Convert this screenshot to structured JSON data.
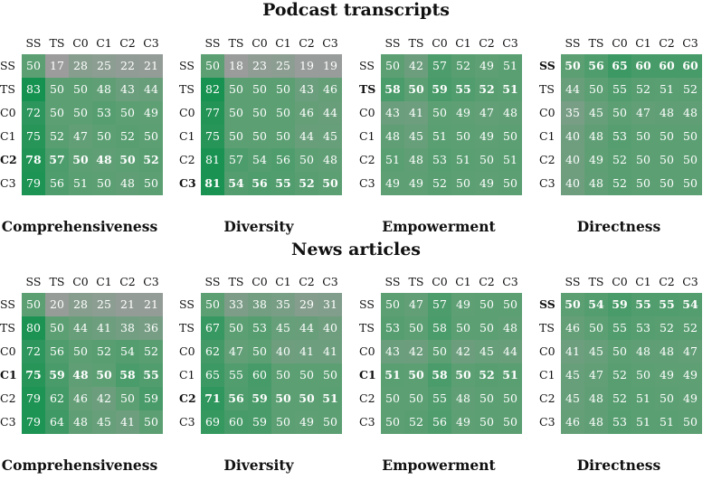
{
  "sections": [
    {
      "title": "Podcast transcripts"
    },
    {
      "title": "News articles"
    }
  ],
  "labels": [
    "SS",
    "TS",
    "C0",
    "C1",
    "C2",
    "C3"
  ],
  "colors": {
    "grey": "#9c9c9c",
    "green_light": "#5c9f73",
    "green_mid": "#4a9c68",
    "green_strong": "#1d9355",
    "text_on_cell": "#ffffff"
  },
  "chart_data": [
    {
      "type": "heatmap",
      "section": "Podcast transcripts",
      "title": "Comprehensiveness",
      "x": [
        "SS",
        "TS",
        "C0",
        "C1",
        "C2",
        "C3"
      ],
      "y": [
        "SS",
        "TS",
        "C0",
        "C1",
        "C2",
        "C3"
      ],
      "bold_row": "C2",
      "values": [
        [
          50,
          17,
          28,
          25,
          22,
          21
        ],
        [
          83,
          50,
          50,
          48,
          43,
          44
        ],
        [
          72,
          50,
          50,
          53,
          50,
          49
        ],
        [
          75,
          52,
          47,
          50,
          52,
          50
        ],
        [
          78,
          57,
          50,
          48,
          50,
          52
        ],
        [
          79,
          56,
          51,
          50,
          48,
          50
        ]
      ]
    },
    {
      "type": "heatmap",
      "section": "Podcast transcripts",
      "title": "Diversity",
      "x": [
        "SS",
        "TS",
        "C0",
        "C1",
        "C2",
        "C3"
      ],
      "y": [
        "SS",
        "TS",
        "C0",
        "C1",
        "C2",
        "C3"
      ],
      "bold_row": "C3",
      "values": [
        [
          50,
          18,
          23,
          25,
          19,
          19
        ],
        [
          82,
          50,
          50,
          50,
          43,
          46
        ],
        [
          77,
          50,
          50,
          50,
          46,
          44
        ],
        [
          75,
          50,
          50,
          50,
          44,
          45
        ],
        [
          81,
          57,
          54,
          56,
          50,
          48
        ],
        [
          81,
          54,
          56,
          55,
          52,
          50
        ]
      ]
    },
    {
      "type": "heatmap",
      "section": "Podcast transcripts",
      "title": "Empowerment",
      "x": [
        "SS",
        "TS",
        "C0",
        "C1",
        "C2",
        "C3"
      ],
      "y": [
        "SS",
        "TS",
        "C0",
        "C1",
        "C2",
        "C3"
      ],
      "bold_row": "TS",
      "values": [
        [
          50,
          42,
          57,
          52,
          49,
          51
        ],
        [
          58,
          50,
          59,
          55,
          52,
          51
        ],
        [
          43,
          41,
          50,
          49,
          47,
          48
        ],
        [
          48,
          45,
          51,
          50,
          49,
          50
        ],
        [
          51,
          48,
          53,
          51,
          50,
          51
        ],
        [
          49,
          49,
          52,
          50,
          49,
          50
        ]
      ]
    },
    {
      "type": "heatmap",
      "section": "Podcast transcripts",
      "title": "Directness",
      "x": [
        "SS",
        "TS",
        "C0",
        "C1",
        "C2",
        "C3"
      ],
      "y": [
        "SS",
        "TS",
        "C0",
        "C1",
        "C2",
        "C3"
      ],
      "bold_row": "SS",
      "values": [
        [
          50,
          56,
          65,
          60,
          60,
          60
        ],
        [
          44,
          50,
          55,
          52,
          51,
          52
        ],
        [
          35,
          45,
          50,
          47,
          48,
          48
        ],
        [
          40,
          48,
          53,
          50,
          50,
          50
        ],
        [
          40,
          49,
          52,
          50,
          50,
          50
        ],
        [
          40,
          48,
          52,
          50,
          50,
          50
        ]
      ]
    },
    {
      "type": "heatmap",
      "section": "News articles",
      "title": "Comprehensiveness",
      "x": [
        "SS",
        "TS",
        "C0",
        "C1",
        "C2",
        "C3"
      ],
      "y": [
        "SS",
        "TS",
        "C0",
        "C1",
        "C2",
        "C3"
      ],
      "bold_row": "C1",
      "values": [
        [
          50,
          20,
          28,
          25,
          21,
          21
        ],
        [
          80,
          50,
          44,
          41,
          38,
          36
        ],
        [
          72,
          56,
          50,
          52,
          54,
          52
        ],
        [
          75,
          59,
          48,
          50,
          58,
          55
        ],
        [
          79,
          62,
          46,
          42,
          50,
          59
        ],
        [
          79,
          64,
          48,
          45,
          41,
          50
        ]
      ]
    },
    {
      "type": "heatmap",
      "section": "News articles",
      "title": "Diversity",
      "x": [
        "SS",
        "TS",
        "C0",
        "C1",
        "C2",
        "C3"
      ],
      "y": [
        "SS",
        "TS",
        "C0",
        "C1",
        "C2",
        "C3"
      ],
      "bold_row": "C2",
      "values": [
        [
          50,
          33,
          38,
          35,
          29,
          31
        ],
        [
          67,
          50,
          53,
          45,
          44,
          40
        ],
        [
          62,
          47,
          50,
          40,
          41,
          41
        ],
        [
          65,
          55,
          60,
          50,
          50,
          50
        ],
        [
          71,
          56,
          59,
          50,
          50,
          51
        ],
        [
          69,
          60,
          59,
          50,
          49,
          50
        ]
      ]
    },
    {
      "type": "heatmap",
      "section": "News articles",
      "title": "Empowerment",
      "x": [
        "SS",
        "TS",
        "C0",
        "C1",
        "C2",
        "C3"
      ],
      "y": [
        "SS",
        "TS",
        "C0",
        "C1",
        "C2",
        "C3"
      ],
      "bold_row": "C1",
      "values": [
        [
          50,
          47,
          57,
          49,
          50,
          50
        ],
        [
          53,
          50,
          58,
          50,
          50,
          48
        ],
        [
          43,
          42,
          50,
          42,
          45,
          44
        ],
        [
          51,
          50,
          58,
          50,
          52,
          51
        ],
        [
          50,
          50,
          55,
          48,
          50,
          50
        ],
        [
          50,
          52,
          56,
          49,
          50,
          50
        ]
      ]
    },
    {
      "type": "heatmap",
      "section": "News articles",
      "title": "Directness",
      "x": [
        "SS",
        "TS",
        "C0",
        "C1",
        "C2",
        "C3"
      ],
      "y": [
        "SS",
        "TS",
        "C0",
        "C1",
        "C2",
        "C3"
      ],
      "bold_row": "SS",
      "values": [
        [
          50,
          54,
          59,
          55,
          55,
          54
        ],
        [
          46,
          50,
          55,
          53,
          52,
          52
        ],
        [
          41,
          45,
          50,
          48,
          48,
          47
        ],
        [
          45,
          47,
          52,
          50,
          49,
          49
        ],
        [
          45,
          48,
          52,
          51,
          50,
          49
        ],
        [
          46,
          48,
          53,
          51,
          51,
          50
        ]
      ]
    }
  ]
}
